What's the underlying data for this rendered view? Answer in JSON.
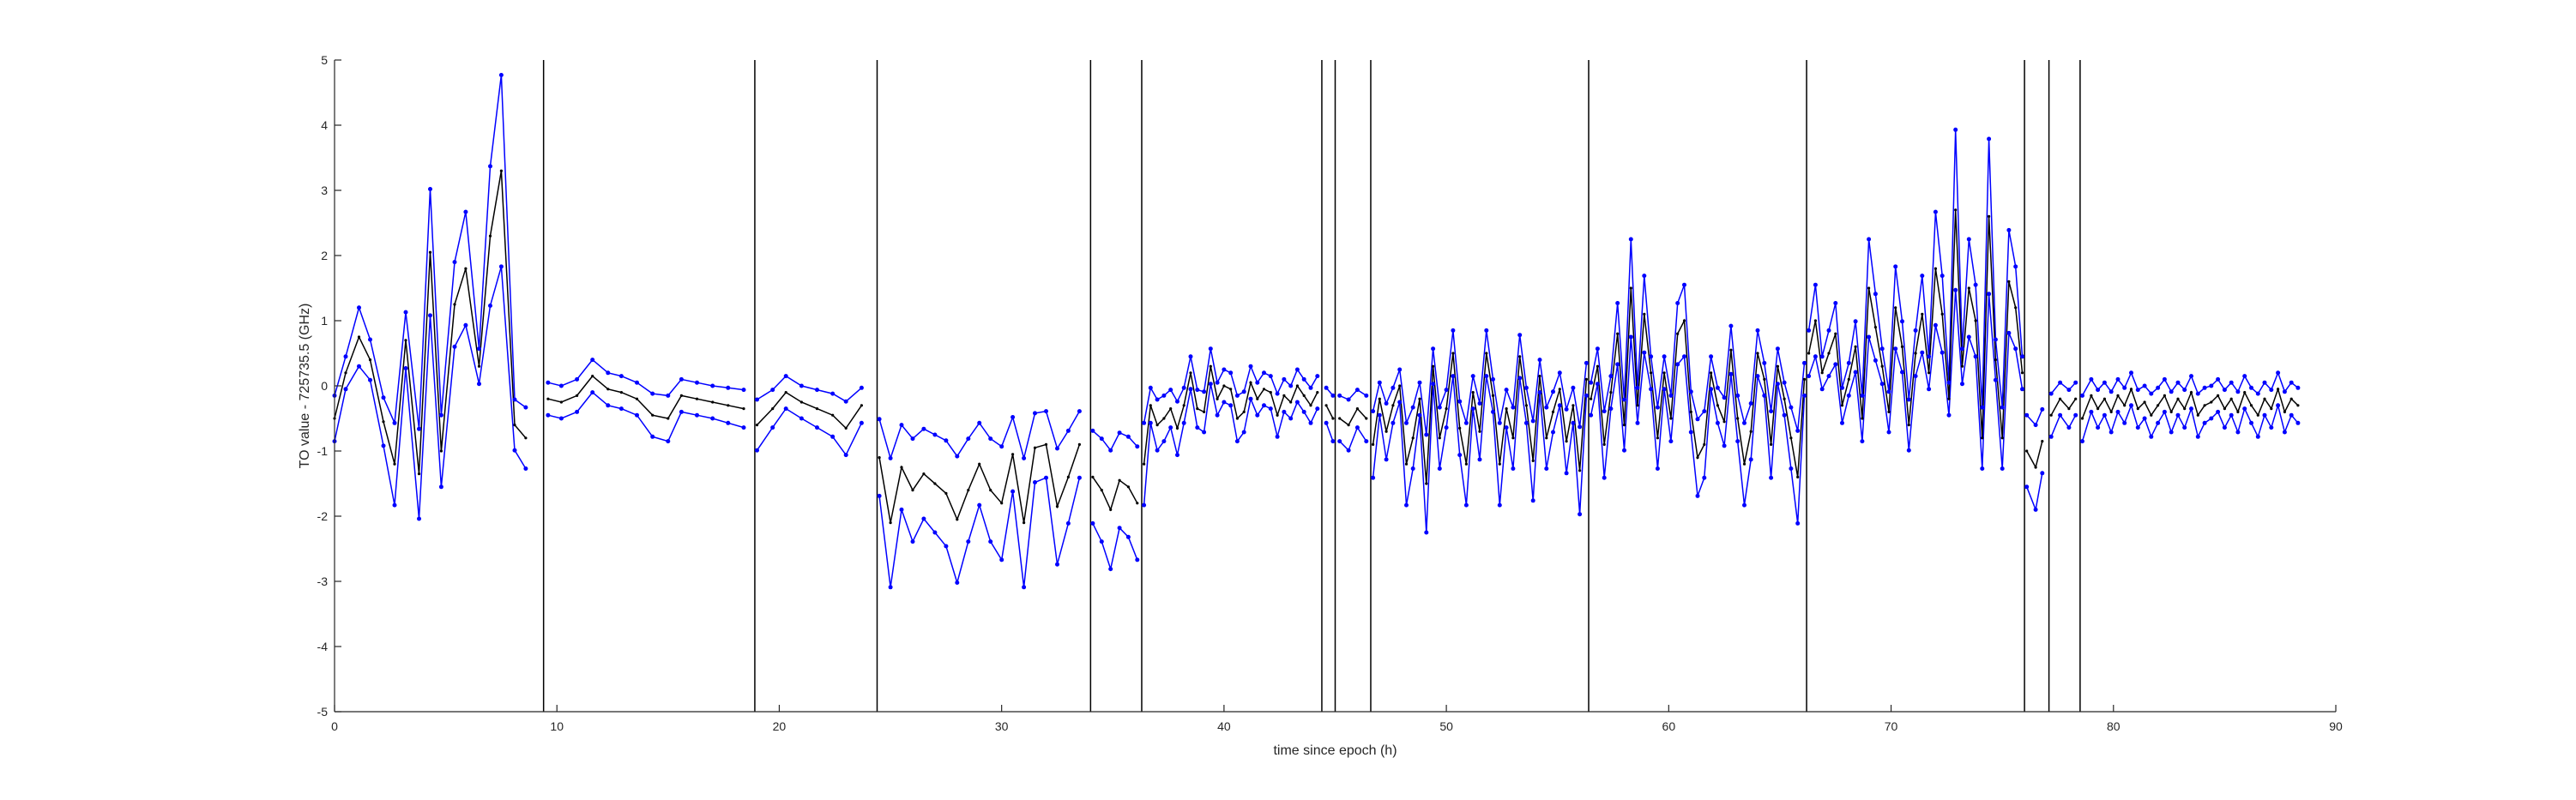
{
  "chart_data": {
    "type": "line",
    "xlabel": "time since epoch (h)",
    "ylabel": "TO value - 725735.5 (GHz)",
    "xlim": [
      0,
      90
    ],
    "ylim": [
      -5,
      5
    ],
    "xticks": [
      0,
      10,
      20,
      30,
      40,
      50,
      60,
      70,
      80,
      90
    ],
    "yticks": [
      -5,
      -4,
      -3,
      -2,
      -1,
      0,
      1,
      2,
      3,
      4,
      5
    ],
    "grid": false,
    "colors": {
      "upper": "#0000ff",
      "lower": "#0000ff",
      "center": "#000000",
      "boundaries": "#000000",
      "axes": "#262626"
    },
    "boundaries": [
      9.4,
      18.9,
      24.4,
      34.0,
      36.3,
      44.4,
      45.0,
      46.6,
      56.4,
      66.2,
      76.0,
      77.1,
      78.5
    ],
    "segments": [
      {
        "x": [
          0.0,
          0.5,
          1.1,
          1.6,
          2.2,
          2.7,
          3.2,
          3.8,
          4.3,
          4.8,
          5.4,
          5.9,
          6.5,
          7.0,
          7.5,
          8.1,
          8.6
        ],
        "y": [
          -0.5,
          0.2,
          0.75,
          0.4,
          -0.55,
          -1.2,
          0.7,
          -1.35,
          2.05,
          -1.0,
          1.25,
          1.8,
          0.3,
          2.3,
          3.3,
          -0.6,
          -0.8
        ]
      },
      {
        "x": [
          9.6,
          10.2,
          10.9,
          11.6,
          12.3,
          12.9,
          13.6,
          14.3,
          15.0,
          15.6,
          16.3,
          17.0,
          17.7,
          18.4
        ],
        "y": [
          -0.2,
          -0.25,
          -0.15,
          0.15,
          -0.05,
          -0.1,
          -0.2,
          -0.45,
          -0.5,
          -0.15,
          -0.2,
          -0.25,
          -0.3,
          -0.35
        ]
      },
      {
        "x": [
          19.0,
          19.7,
          20.3,
          21.0,
          21.7,
          22.4,
          23.0,
          23.7
        ],
        "y": [
          -0.6,
          -0.35,
          -0.1,
          -0.25,
          -0.35,
          -0.45,
          -0.65,
          -0.3
        ]
      },
      {
        "x": [
          24.5,
          25.0,
          25.5,
          26.0,
          26.5,
          27.0,
          27.5,
          28.0,
          28.5,
          29.0,
          29.5,
          30.0,
          30.5,
          31.0,
          31.5,
          32.0,
          32.5,
          33.0,
          33.5
        ],
        "y": [
          -1.1,
          -2.1,
          -1.25,
          -1.6,
          -1.35,
          -1.5,
          -1.65,
          -2.05,
          -1.6,
          -1.2,
          -1.6,
          -1.8,
          -1.05,
          -2.1,
          -0.95,
          -0.9,
          -1.85,
          -1.4,
          -0.9
        ]
      },
      {
        "x": [
          34.1,
          34.5,
          34.9,
          35.3,
          35.7,
          36.1
        ],
        "y": [
          -1.4,
          -1.6,
          -1.9,
          -1.45,
          -1.55,
          -1.8
        ]
      },
      {
        "x": [
          36.4,
          36.7,
          37.0,
          37.3,
          37.6,
          37.9,
          38.2,
          38.5,
          38.8,
          39.1,
          39.4,
          39.7,
          40.0,
          40.3,
          40.6,
          40.9,
          41.2,
          41.5,
          41.8,
          42.1,
          42.4,
          42.7,
          43.0,
          43.3,
          43.6,
          43.9,
          44.2
        ],
        "y": [
          -1.2,
          -0.3,
          -0.6,
          -0.5,
          -0.35,
          -0.65,
          -0.3,
          0.2,
          -0.35,
          -0.4,
          0.3,
          -0.2,
          0.0,
          -0.05,
          -0.5,
          -0.4,
          0.05,
          -0.2,
          -0.05,
          -0.1,
          -0.45,
          -0.15,
          -0.25,
          0.0,
          -0.15,
          -0.3,
          -0.1
        ]
      },
      {
        "x": [
          44.6,
          44.9
        ],
        "y": [
          -0.3,
          -0.5
        ]
      },
      {
        "x": [
          45.2,
          45.6,
          46.0,
          46.4
        ],
        "y": [
          -0.5,
          -0.6,
          -0.35,
          -0.5
        ]
      },
      {
        "x": [
          46.7,
          47.0,
          47.3,
          47.6,
          47.9,
          48.2,
          48.5,
          48.8,
          49.1,
          49.4,
          49.7,
          50.0,
          50.3,
          50.6,
          50.9,
          51.2,
          51.5,
          51.8,
          52.1,
          52.4,
          52.7,
          53.0,
          53.3,
          53.6,
          53.9,
          54.2,
          54.5,
          54.8,
          55.1,
          55.4,
          55.7,
          56.0,
          56.3
        ],
        "y": [
          -0.9,
          -0.2,
          -0.7,
          -0.3,
          0.0,
          -1.2,
          -0.8,
          -0.2,
          -1.5,
          0.3,
          -0.8,
          -0.35,
          0.5,
          -0.65,
          -1.2,
          -0.1,
          -0.7,
          0.5,
          -0.15,
          -1.2,
          -0.35,
          -0.8,
          0.45,
          -0.3,
          -1.15,
          0.15,
          -0.8,
          -0.4,
          -0.05,
          -0.85,
          -0.3,
          -1.3,
          0.1
        ]
      },
      {
        "x": [
          56.5,
          56.8,
          57.1,
          57.4,
          57.7,
          58.0,
          58.3,
          58.6,
          58.9,
          59.2,
          59.5,
          59.8,
          60.1,
          60.4,
          60.7,
          61.0,
          61.3,
          61.6,
          61.9,
          62.2,
          62.5,
          62.8,
          63.1,
          63.4,
          63.7,
          64.0,
          64.3,
          64.6,
          64.9,
          65.2,
          65.5,
          65.8,
          66.1
        ],
        "y": [
          -0.2,
          0.3,
          -0.9,
          -0.1,
          0.8,
          -0.6,
          1.5,
          -0.3,
          1.1,
          0.2,
          -0.8,
          0.2,
          -0.5,
          0.8,
          1.0,
          -0.4,
          -1.1,
          -0.9,
          0.2,
          -0.3,
          -0.55,
          0.55,
          -0.5,
          -1.2,
          -0.7,
          0.5,
          0.1,
          -0.9,
          0.3,
          -0.2,
          -0.8,
          -1.4,
          0.1
        ]
      },
      {
        "x": [
          66.3,
          66.6,
          66.9,
          67.2,
          67.5,
          67.8,
          68.1,
          68.4,
          68.7,
          69.0,
          69.3,
          69.6,
          69.9,
          70.2,
          70.5,
          70.8,
          71.1,
          71.4,
          71.7,
          72.0,
          72.3,
          72.6,
          72.9,
          73.2,
          73.5,
          73.8,
          74.1,
          74.4,
          74.7,
          75.0,
          75.3,
          75.6,
          75.9
        ],
        "y": [
          0.5,
          1.0,
          0.2,
          0.5,
          0.8,
          -0.3,
          0.1,
          0.6,
          -0.5,
          1.5,
          0.9,
          0.3,
          -0.4,
          1.2,
          0.6,
          -0.6,
          0.5,
          1.1,
          0.2,
          1.8,
          1.1,
          -0.2,
          2.7,
          0.3,
          1.5,
          1.0,
          -0.8,
          2.6,
          0.4,
          -0.8,
          1.6,
          1.2,
          0.2
        ]
      },
      {
        "x": [
          76.1,
          76.5,
          76.8
        ],
        "y": [
          -1.0,
          -1.25,
          -0.85
        ]
      },
      {
        "x": [
          77.2,
          77.6,
          78.0,
          78.3
        ],
        "y": [
          -0.45,
          -0.2,
          -0.35,
          -0.2
        ]
      },
      {
        "x": [
          78.6,
          79.0,
          79.3,
          79.6,
          79.9,
          80.2,
          80.5,
          80.8,
          81.1,
          81.4,
          81.7,
          82.0,
          82.3,
          82.6,
          82.9,
          83.2,
          83.5,
          83.8,
          84.1,
          84.4,
          84.7,
          85.0,
          85.3,
          85.6,
          85.9,
          86.2,
          86.5,
          86.8,
          87.1,
          87.4,
          87.7,
          88.0,
          88.3
        ],
        "y": [
          -0.5,
          -0.15,
          -0.35,
          -0.2,
          -0.4,
          -0.15,
          -0.3,
          -0.05,
          -0.35,
          -0.25,
          -0.45,
          -0.3,
          -0.15,
          -0.4,
          -0.2,
          -0.35,
          -0.1,
          -0.45,
          -0.3,
          -0.25,
          -0.15,
          -0.35,
          -0.2,
          -0.4,
          -0.1,
          -0.3,
          -0.45,
          -0.2,
          -0.35,
          -0.05,
          -0.4,
          -0.2,
          -0.3
        ]
      }
    ]
  }
}
